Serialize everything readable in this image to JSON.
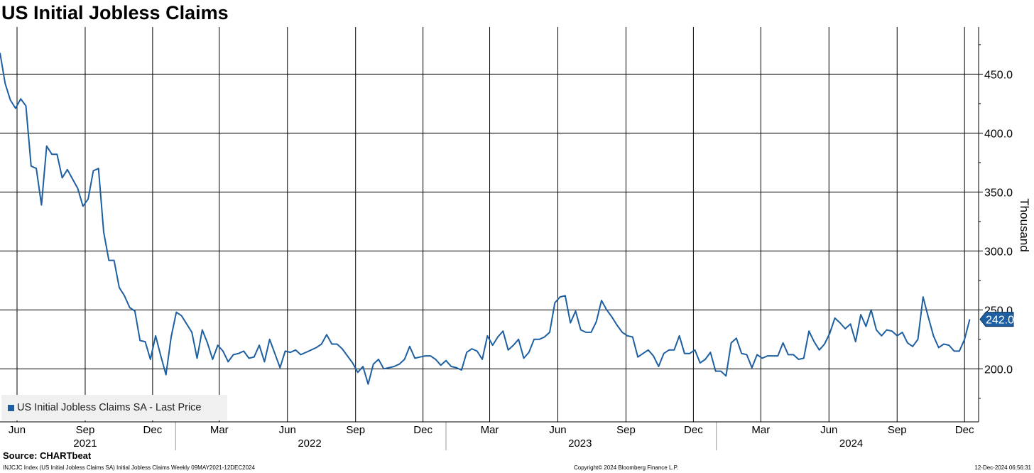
{
  "title": "US Initial Jobless Claims",
  "source": "Source: CHARTbeat",
  "footer": {
    "left": "INJCJC Index (US Initial Jobless Claims SA) Initial Jobless Claims  Weekly 09MAY2021-12DEC2024",
    "center": "Copyright© 2024 Bloomberg Finance L.P.",
    "right": "12-Dec-2024 06:56:31"
  },
  "legend": {
    "label": "US Initial Jobless Claims SA - Last Price",
    "color": "#1d5fa0"
  },
  "chart_data": {
    "type": "line",
    "title": "US Initial Jobless Claims",
    "xlabel": "",
    "ylabel": "Thousand",
    "ylim": [
      155,
      490
    ],
    "xlim": [
      "2021-05-09",
      "2024-12-20"
    ],
    "grid": true,
    "legend_position": "bottom-left",
    "y_ticks": [
      200,
      250,
      300,
      350,
      400,
      450
    ],
    "y_tick_labels": [
      "200.0",
      "250.0",
      "300.0",
      "350.0",
      "400.0",
      "450.0"
    ],
    "x_month_ticks": [
      {
        "label": "Jun",
        "date": "2021-06-01"
      },
      {
        "label": "Sep",
        "date": "2021-09-01"
      },
      {
        "label": "Dec",
        "date": "2021-12-01"
      },
      {
        "label": "Mar",
        "date": "2022-03-01"
      },
      {
        "label": "Jun",
        "date": "2022-06-01"
      },
      {
        "label": "Sep",
        "date": "2022-09-01"
      },
      {
        "label": "Dec",
        "date": "2022-12-01"
      },
      {
        "label": "Mar",
        "date": "2023-03-01"
      },
      {
        "label": "Jun",
        "date": "2023-06-01"
      },
      {
        "label": "Sep",
        "date": "2023-09-01"
      },
      {
        "label": "Dec",
        "date": "2023-12-01"
      },
      {
        "label": "Mar",
        "date": "2024-03-01"
      },
      {
        "label": "Jun",
        "date": "2024-06-01"
      },
      {
        "label": "Sep",
        "date": "2024-09-01"
      },
      {
        "label": "Dec",
        "date": "2024-12-01"
      }
    ],
    "x_year_labels": [
      {
        "label": "2021",
        "date": "2021-09-01"
      },
      {
        "label": "2022",
        "date": "2022-07-01"
      },
      {
        "label": "2023",
        "date": "2023-07-01"
      },
      {
        "label": "2024",
        "date": "2024-07-01"
      }
    ],
    "year_dividers": [
      "2022-01-01",
      "2023-01-01",
      "2024-01-01"
    ],
    "last_value_label": "242.0",
    "series": [
      {
        "name": "US Initial Jobless Claims SA - Last Price",
        "color": "#1d5fa0",
        "start_date": "2021-05-09",
        "frequency": "weekly",
        "values": [
          468,
          442,
          428,
          421,
          429,
          423,
          372,
          370,
          339,
          389,
          382,
          382,
          362,
          369,
          361,
          353,
          338,
          344,
          368,
          370,
          316,
          292,
          292,
          269,
          262,
          252,
          249,
          224,
          223,
          208,
          228,
          211,
          195,
          227,
          248,
          245,
          238,
          231,
          209,
          233,
          222,
          208,
          220,
          215,
          206,
          212,
          213,
          215,
          209,
          210,
          220,
          206,
          225,
          213,
          201,
          215,
          214,
          216,
          212,
          214,
          216,
          218,
          221,
          229,
          221,
          221,
          217,
          211,
          205,
          197,
          202,
          187,
          204,
          208,
          200,
          201,
          202,
          204,
          208,
          219,
          209,
          210,
          211,
          211,
          208,
          203,
          207,
          202,
          201,
          199,
          214,
          217,
          215,
          208,
          228,
          220,
          227,
          232,
          216,
          220,
          225,
          209,
          214,
          225,
          225,
          227,
          231,
          256,
          261,
          262,
          239,
          249,
          233,
          231,
          231,
          240,
          258,
          250,
          244,
          237,
          231,
          228,
          227,
          210,
          213,
          216,
          211,
          202,
          213,
          216,
          216,
          228,
          213,
          213,
          216,
          205,
          208,
          214,
          198,
          198,
          194,
          222,
          226,
          213,
          212,
          201,
          212,
          209,
          211,
          211,
          211,
          222,
          212,
          212,
          208,
          209,
          232,
          223,
          216,
          221,
          230,
          243,
          239,
          234,
          238,
          223,
          246,
          236,
          250,
          233,
          228,
          233,
          232,
          228,
          231,
          222,
          219,
          225,
          261,
          244,
          228,
          218,
          221,
          220,
          215,
          215,
          225,
          242
        ]
      }
    ]
  }
}
